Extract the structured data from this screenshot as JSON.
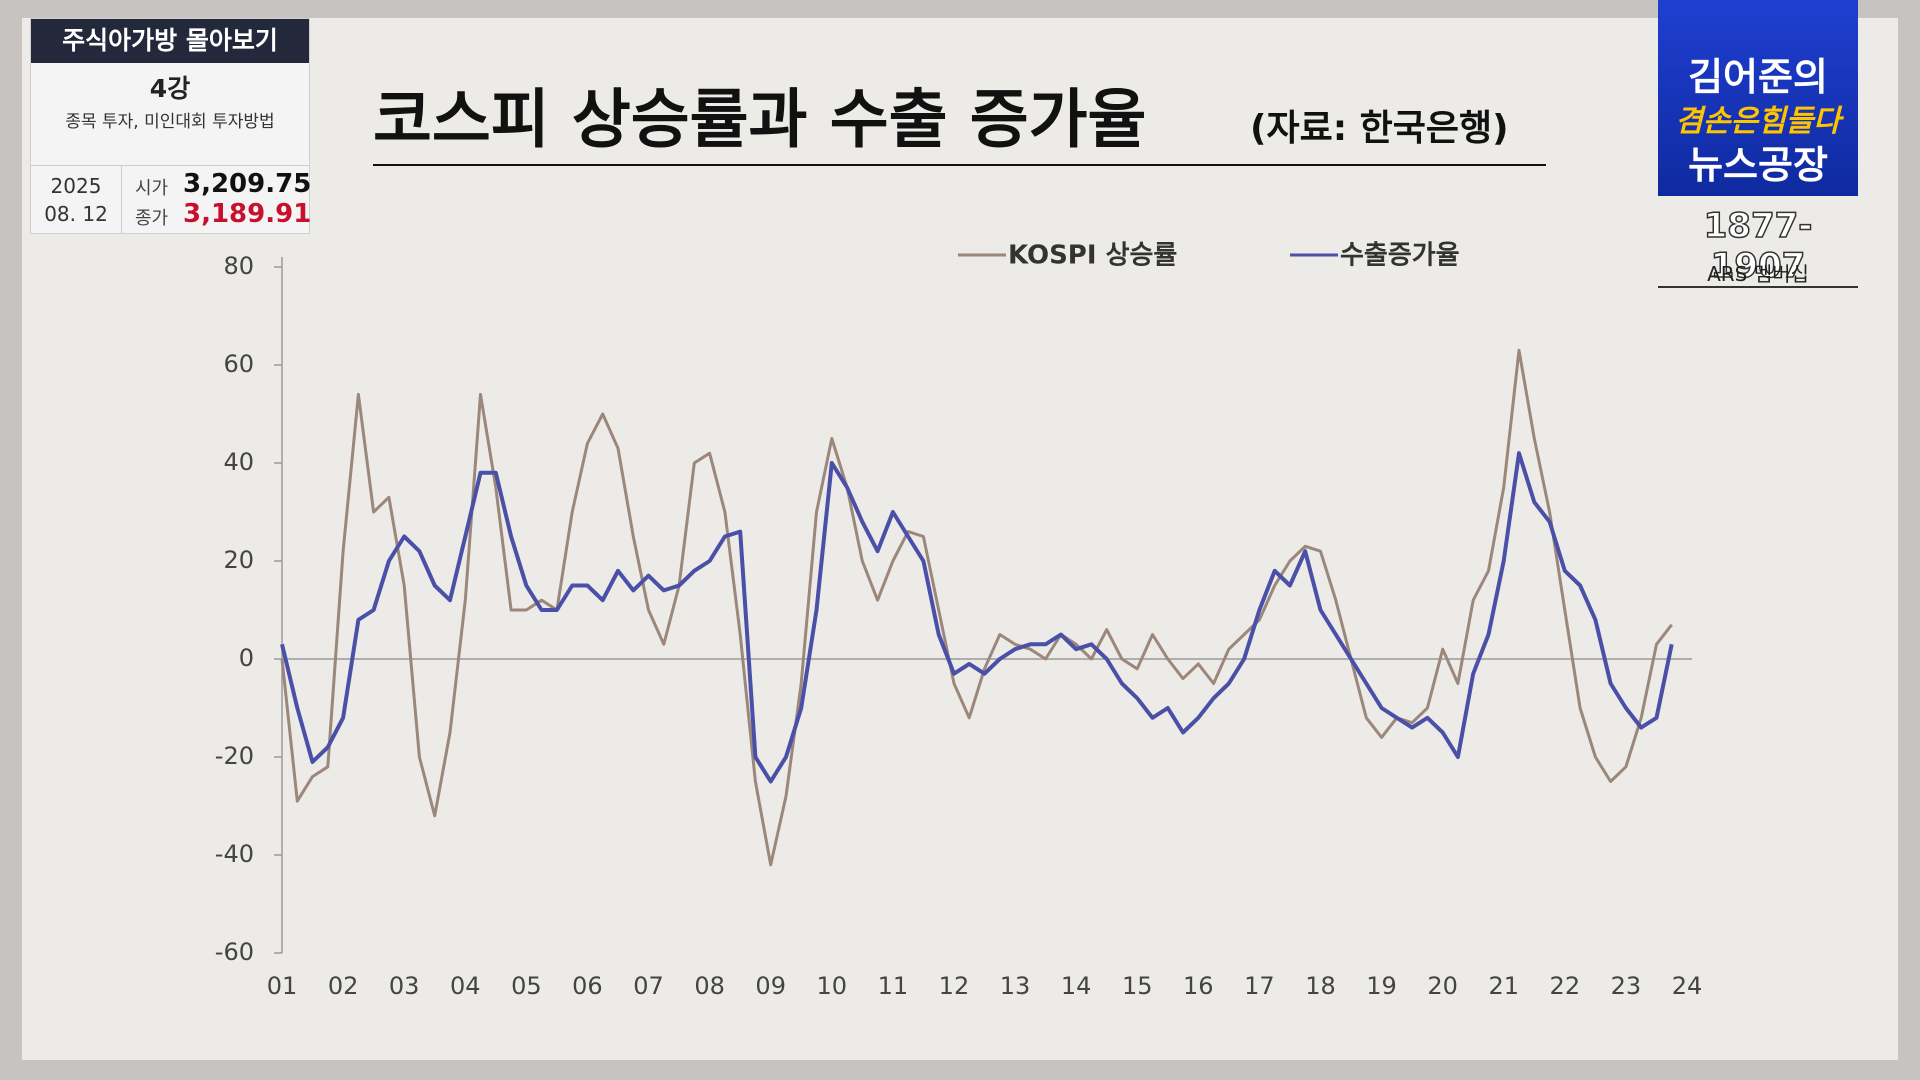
{
  "chart_data": {
    "type": "line",
    "title": "코스피 상승률과 수출 증가율",
    "source": "(자료: 한국은행)",
    "x": [
      1,
      1.25,
      1.5,
      1.75,
      2,
      2.25,
      2.5,
      2.75,
      3,
      3.25,
      3.5,
      3.75,
      4,
      4.25,
      4.5,
      4.75,
      5,
      5.25,
      5.5,
      5.75,
      6,
      6.25,
      6.5,
      6.75,
      7,
      7.25,
      7.5,
      7.75,
      8,
      8.25,
      8.5,
      8.75,
      9,
      9.25,
      9.5,
      9.75,
      10,
      10.25,
      10.5,
      10.75,
      11,
      11.25,
      11.5,
      11.75,
      12,
      12.25,
      12.5,
      12.75,
      13,
      13.25,
      13.5,
      13.75,
      14,
      14.25,
      14.5,
      14.75,
      15,
      15.25,
      15.5,
      15.75,
      16,
      16.25,
      16.5,
      16.75,
      17,
      17.25,
      17.5,
      17.75,
      18,
      18.25,
      18.5,
      18.75,
      19,
      19.25,
      19.5,
      19.75,
      20,
      20.25,
      20.5,
      20.75,
      21,
      21.25,
      21.5,
      21.75,
      22,
      22.25,
      22.5,
      22.75,
      23,
      23.25,
      23.5,
      23.75
    ],
    "series": [
      {
        "name": "KOSPI 상승률",
        "color": "#9c877b",
        "values": [
          0,
          -29,
          -24,
          -22,
          22,
          54,
          30,
          33,
          15,
          -20,
          -32,
          -15,
          12,
          54,
          35,
          10,
          10,
          12,
          10,
          30,
          44,
          50,
          43,
          25,
          10,
          3,
          15,
          40,
          42,
          30,
          5,
          -25,
          -42,
          -28,
          -5,
          30,
          45,
          35,
          20,
          12,
          20,
          26,
          25,
          10,
          -5,
          -12,
          -2,
          5,
          3,
          2,
          0,
          5,
          3,
          0,
          6,
          0,
          -2,
          5,
          0,
          -4,
          -1,
          -5,
          2,
          5,
          8,
          15,
          20,
          23,
          22,
          12,
          0,
          -12,
          -16,
          -12,
          -13,
          -10,
          2,
          -5,
          12,
          18,
          35,
          63,
          45,
          30,
          10,
          -10,
          -20,
          -25,
          -22,
          -12,
          3,
          7
        ]
      },
      {
        "name": "수출증가율",
        "color": "#4a4fa8",
        "values": [
          3,
          -10,
          -21,
          -18,
          -12,
          8,
          10,
          20,
          25,
          22,
          15,
          12,
          25,
          38,
          38,
          25,
          15,
          10,
          10,
          15,
          15,
          12,
          18,
          14,
          17,
          14,
          15,
          18,
          20,
          25,
          26,
          -20,
          -25,
          -20,
          -10,
          10,
          40,
          35,
          28,
          22,
          30,
          25,
          20,
          5,
          -3,
          -1,
          -3,
          0,
          2,
          3,
          3,
          5,
          2,
          3,
          0,
          -5,
          -8,
          -12,
          -10,
          -15,
          -12,
          -8,
          -5,
          0,
          10,
          18,
          15,
          22,
          10,
          5,
          0,
          -5,
          -10,
          -12,
          -14,
          -12,
          -15,
          -20,
          -3,
          5,
          20,
          42,
          32,
          28,
          18,
          15,
          8,
          -5,
          -10,
          -14,
          -12,
          3
        ]
      }
    ],
    "xlim": [
      1,
      24
    ],
    "xticks": [
      {
        "value": 1,
        "label": "01"
      },
      {
        "value": 2,
        "label": "02"
      },
      {
        "value": 3,
        "label": "03"
      },
      {
        "value": 4,
        "label": "04"
      },
      {
        "value": 5,
        "label": "05"
      },
      {
        "value": 6,
        "label": "06"
      },
      {
        "value": 7,
        "label": "07"
      },
      {
        "value": 8,
        "label": "08"
      },
      {
        "value": 9,
        "label": "09"
      },
      10,
      11,
      12,
      13,
      14,
      15,
      16,
      17,
      18,
      19,
      20,
      21,
      22,
      23,
      24
    ],
    "ylim": [
      -60,
      80
    ],
    "yticks": [
      -60,
      -40,
      -20,
      0,
      20,
      40,
      60,
      80
    ],
    "zero_line": true
  },
  "overlay": {
    "header": "주식아가방 몰아보기",
    "lecture": "4강",
    "topic": "종목 투자, 미인대회 투자방법",
    "year": "2025",
    "date": "08. 12",
    "open_label": "시가",
    "open_value": "3,209.75",
    "close_label": "종가",
    "close_value": "3,189.91"
  },
  "logo": {
    "line1": "김어준의",
    "line2": "겸손은힘들다",
    "line3": "뉴스공장",
    "phone": "1877-1907",
    "membership": "ARS 멤버십"
  }
}
